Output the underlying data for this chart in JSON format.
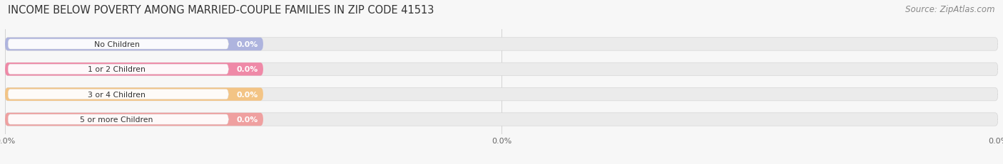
{
  "title": "INCOME BELOW POVERTY AMONG MARRIED-COUPLE FAMILIES IN ZIP CODE 41513",
  "source": "Source: ZipAtlas.com",
  "categories": [
    "No Children",
    "1 or 2 Children",
    "3 or 4 Children",
    "5 or more Children"
  ],
  "values": [
    0.0,
    0.0,
    0.0,
    0.0
  ],
  "bar_colors": [
    "#a8aedd",
    "#f07fa0",
    "#f5c07a",
    "#f09898"
  ],
  "background_color": "#f7f7f7",
  "title_fontsize": 10.5,
  "source_fontsize": 8.5,
  "figsize": [
    14.06,
    2.32
  ]
}
